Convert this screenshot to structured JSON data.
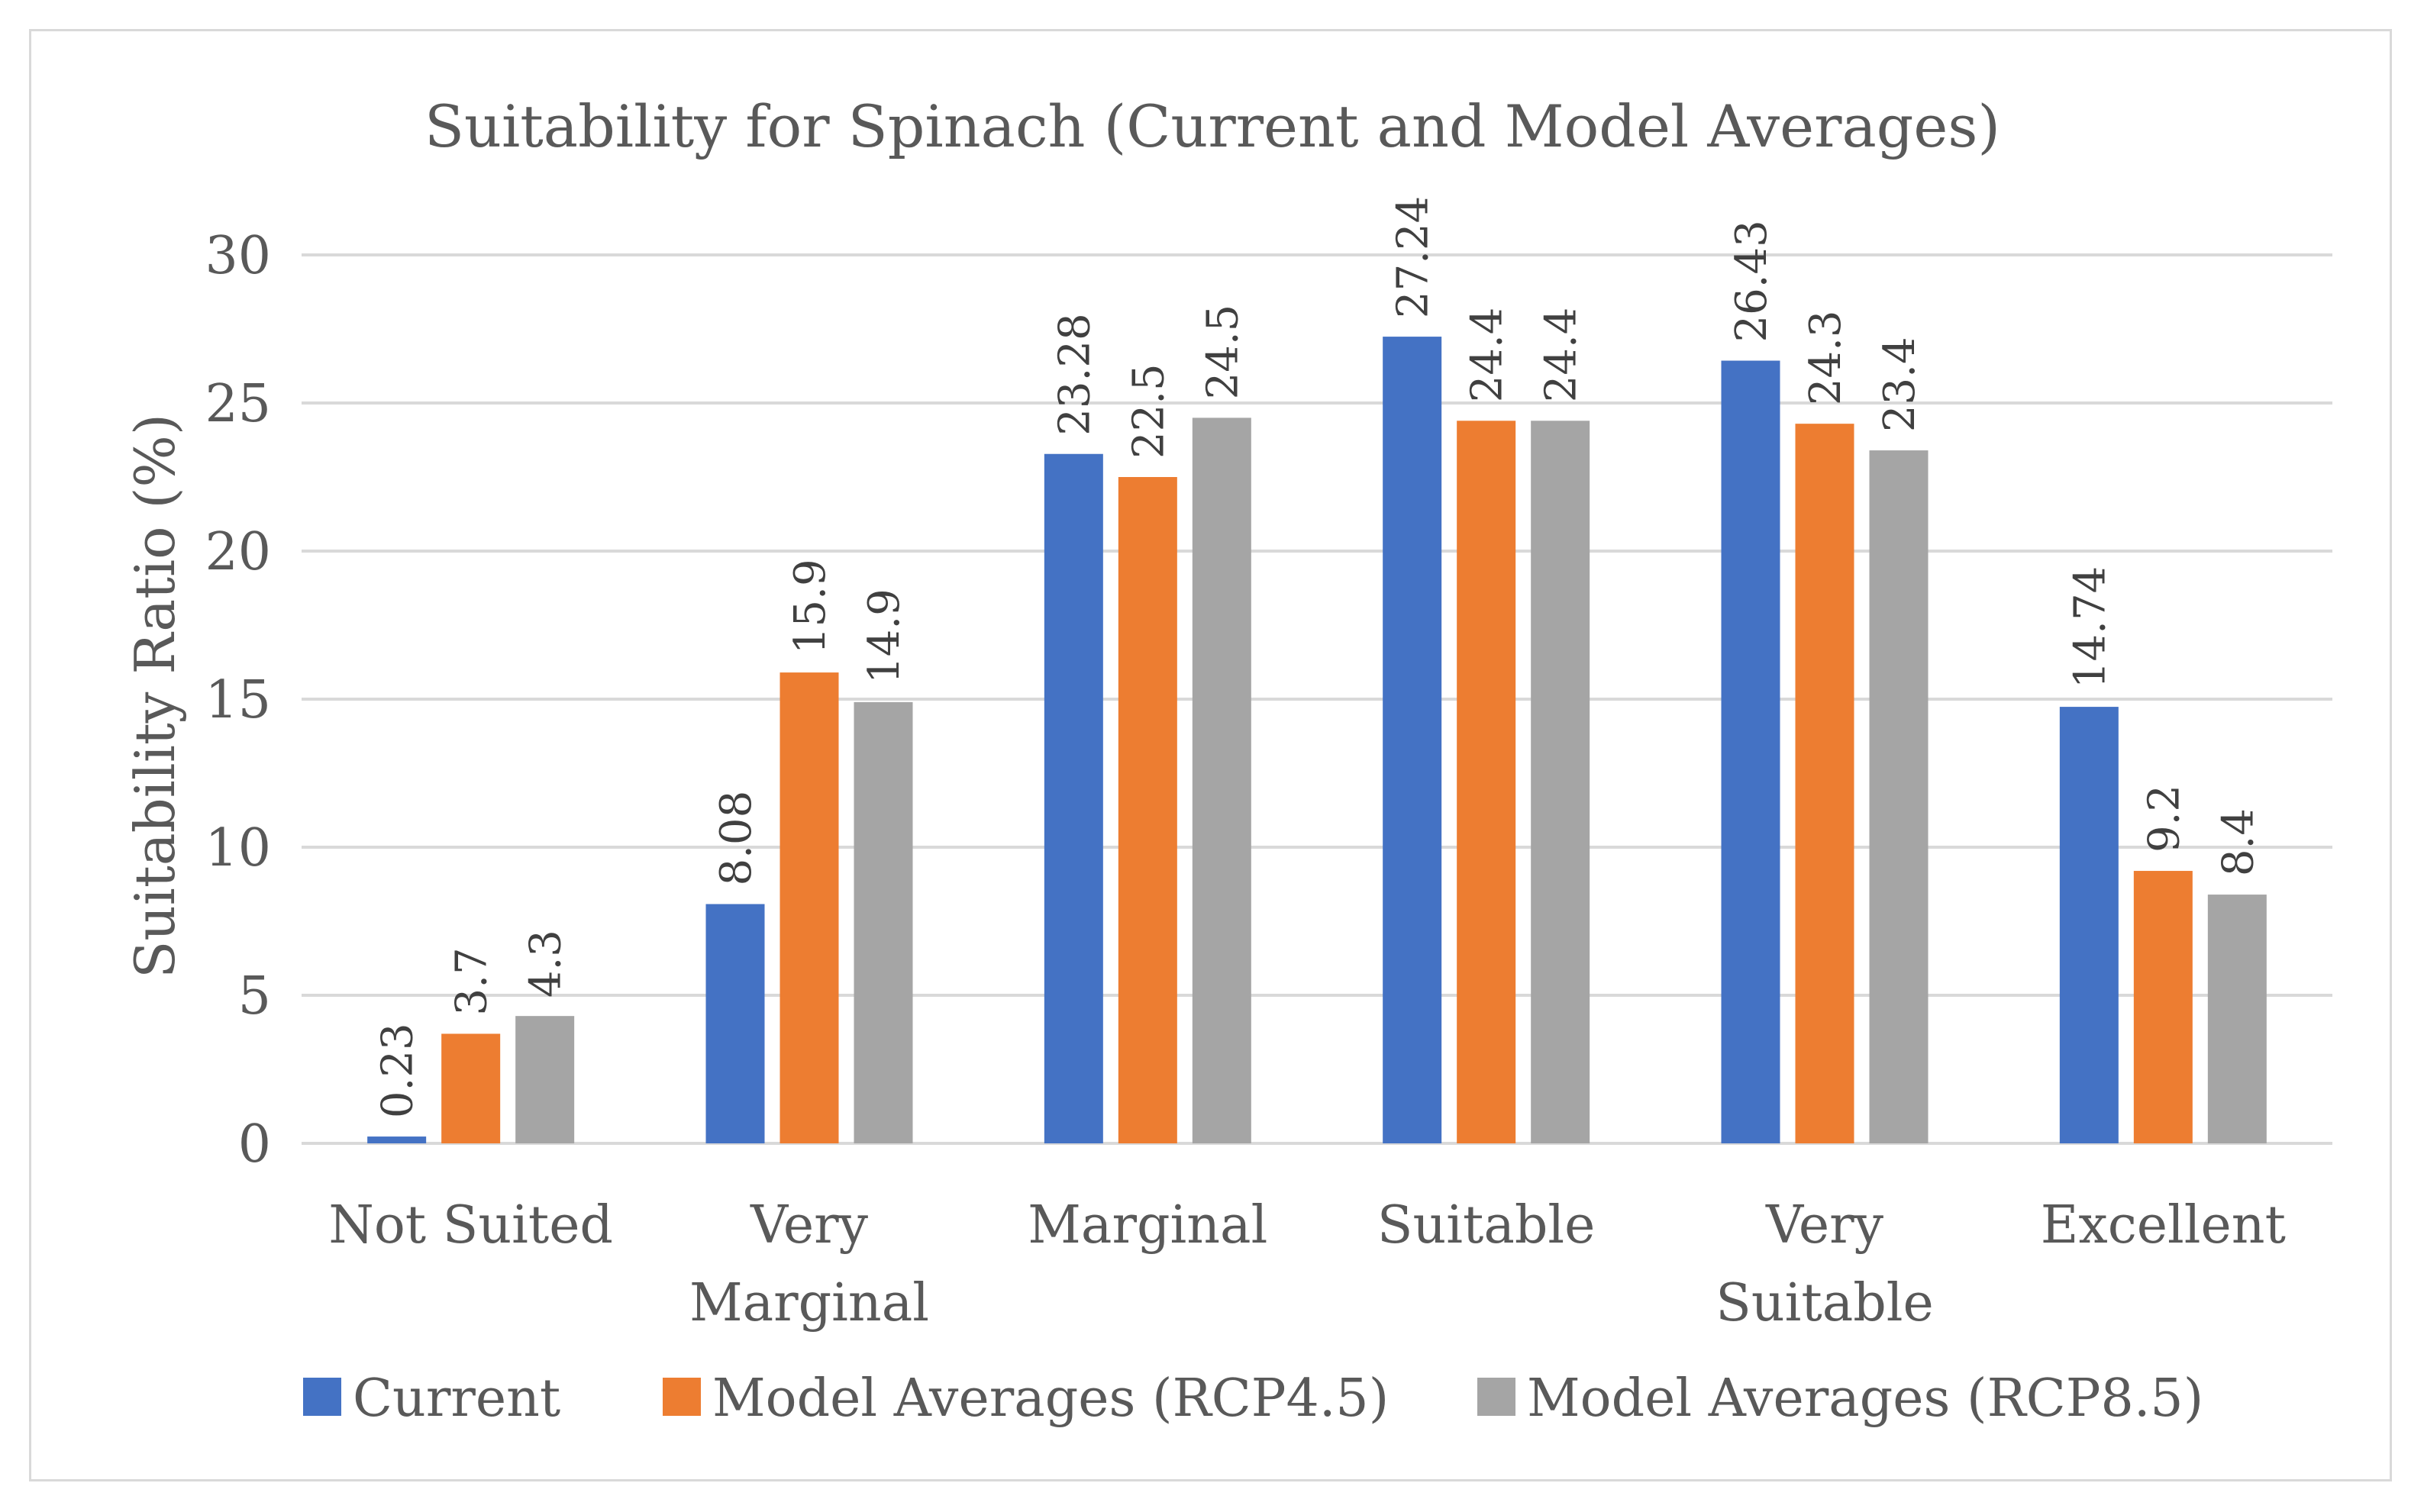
{
  "chart_data": {
    "type": "bar",
    "title": "Suitability for Spinach (Current and Model Averages)",
    "xlabel": "",
    "ylabel": "Suitability Ratio (%)",
    "ylim": [
      0,
      30
    ],
    "yticks": [
      "0",
      "5",
      "10",
      "15",
      "20",
      "25",
      "30"
    ],
    "ytick_values": [
      0,
      5,
      10,
      15,
      20,
      25,
      30
    ],
    "grid": true,
    "legend_position": "bottom",
    "categories": [
      [
        "Not Suited"
      ],
      [
        "Very",
        "Marginal"
      ],
      [
        "Marginal"
      ],
      [
        "Suitable"
      ],
      [
        "Very",
        "Suitable"
      ],
      [
        "Excellent"
      ]
    ],
    "series": [
      {
        "name": "Current",
        "color": "#4472c4",
        "values": [
          0.23,
          8.08,
          23.28,
          27.24,
          26.43,
          14.74
        ],
        "labels": [
          "0.23",
          "8.08",
          "23.28",
          "27.24",
          "26.43",
          "14.74"
        ]
      },
      {
        "name": "Model Averages (RCP4.5)",
        "color": "#ed7d31",
        "values": [
          3.7,
          15.9,
          22.5,
          24.4,
          24.3,
          9.2
        ],
        "labels": [
          "3.7",
          "15.9",
          "22.5",
          "24.4",
          "24.3",
          "9.2"
        ]
      },
      {
        "name": "Model Averages (RCP8.5)",
        "color": "#a5a5a5",
        "values": [
          4.3,
          14.9,
          24.5,
          24.4,
          23.4,
          8.4
        ],
        "labels": [
          "4.3",
          "14.9",
          "24.5",
          "24.4",
          "23.4",
          "8.4"
        ]
      }
    ]
  }
}
